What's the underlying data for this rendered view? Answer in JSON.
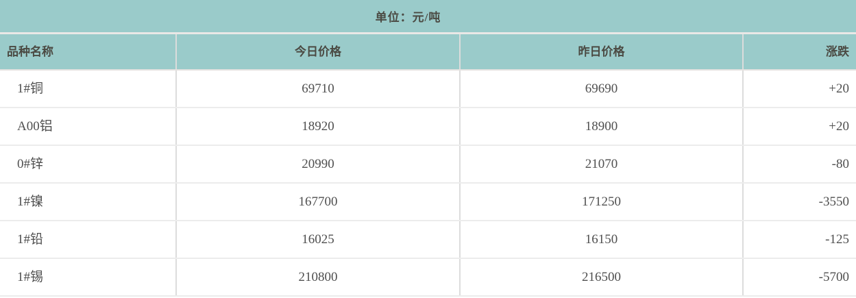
{
  "unit_label": "单位：元/吨",
  "colors": {
    "band_teal": "#9acbca",
    "header_text": "#4b4a43",
    "data_text": "#4f4f4f",
    "grid_line": "#dcdcdc",
    "row_separator": "#ececec"
  },
  "table": {
    "columns": [
      {
        "label": "品种名称"
      },
      {
        "label": "今日价格"
      },
      {
        "label": "昨日价格"
      },
      {
        "label": "涨跌"
      }
    ],
    "rows": [
      {
        "name": "1#铜",
        "today": "69710",
        "yesterday": "69690",
        "change": "+20"
      },
      {
        "name": "A00铝",
        "today": "18920",
        "yesterday": "18900",
        "change": "+20"
      },
      {
        "name": "0#锌",
        "today": "20990",
        "yesterday": "21070",
        "change": "-80"
      },
      {
        "name": "1#镍",
        "today": "167700",
        "yesterday": "171250",
        "change": "-3550"
      },
      {
        "name": "1#铅",
        "today": "16025",
        "yesterday": "16150",
        "change": "-125"
      },
      {
        "name": "1#锡",
        "today": "210800",
        "yesterday": "216500",
        "change": "-5700"
      }
    ]
  },
  "chart_data": {
    "type": "table",
    "title": "单位：元/吨",
    "columns": [
      "品种名称",
      "今日价格",
      "昨日价格",
      "涨跌"
    ],
    "rows": [
      [
        "1#铜",
        69710,
        69690,
        20
      ],
      [
        "A00铝",
        18920,
        18900,
        20
      ],
      [
        "0#锌",
        20990,
        21070,
        -80
      ],
      [
        "1#镍",
        167700,
        171250,
        -3550
      ],
      [
        "1#铅",
        16025,
        16150,
        -125
      ],
      [
        "1#锡",
        210800,
        216500,
        -5700
      ]
    ]
  }
}
